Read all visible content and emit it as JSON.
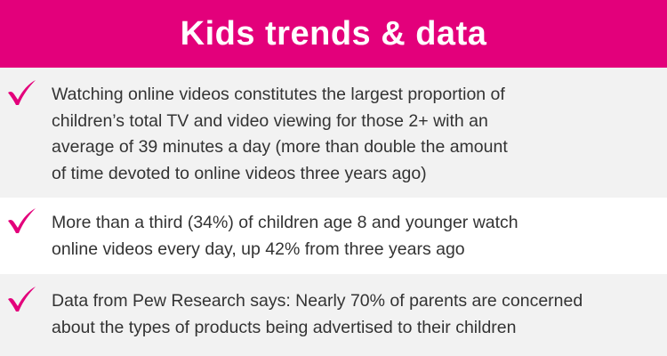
{
  "header": {
    "title": "Kids trends & data"
  },
  "items": [
    {
      "lines": [
        "Watching online videos constitutes the largest proportion of",
        "children’s total TV and video viewing for those 2+ with an",
        "average of 39 minutes a day (more than double the amount",
        "of time devoted to online videos three years ago)"
      ]
    },
    {
      "lines": [
        "More than a third (34%) of children age 8 and younger watch",
        "online videos every day, up 42% from three years ago"
      ]
    },
    {
      "lines": [
        "Data from Pew Research says: Nearly 70% of parents are concerned",
        "about the types of products being advertised to their children"
      ]
    }
  ]
}
